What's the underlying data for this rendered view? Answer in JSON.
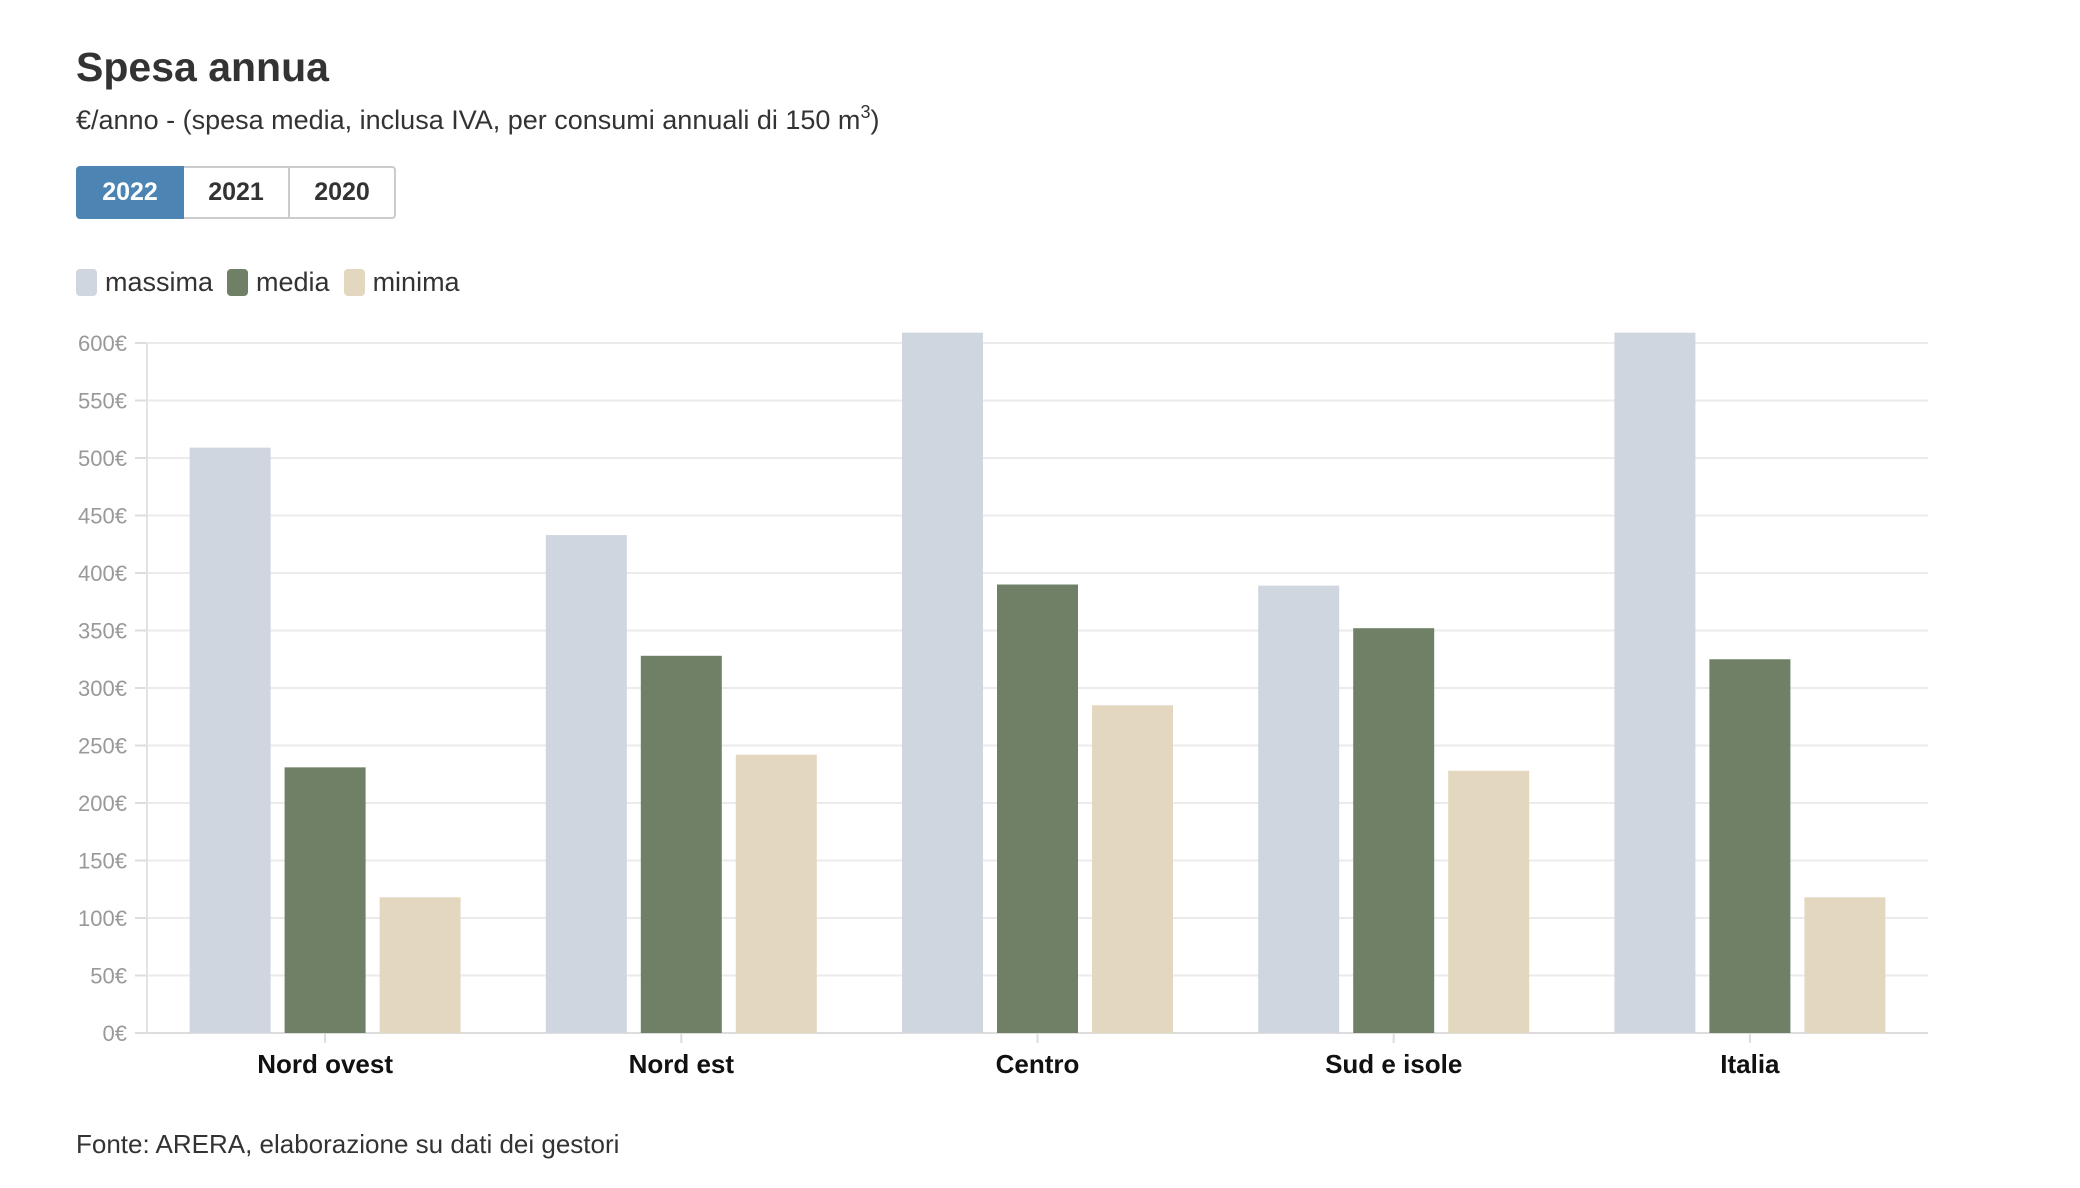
{
  "header": {
    "title": "Spesa annua",
    "subtitle_text": "€/anno - (spesa media, inclusa IVA, per consumi annuali di 150 m",
    "subtitle_sup": "3",
    "subtitle_close": ")"
  },
  "tabs": [
    {
      "label": "2022",
      "active": true
    },
    {
      "label": "2021",
      "active": false
    },
    {
      "label": "2020",
      "active": false
    }
  ],
  "legend": [
    {
      "label": "massima",
      "color": "#cfd6df"
    },
    {
      "label": "media",
      "color": "#6f8066"
    },
    {
      "label": "minima",
      "color": "#e4d7c0"
    }
  ],
  "source": "Fonte: ARERA, elaborazione su dati dei gestori",
  "chart_data": {
    "type": "bar",
    "categories": [
      "Nord ovest",
      "Nord est",
      "Centro",
      "Sud e isole",
      "Italia"
    ],
    "series": [
      {
        "name": "massima",
        "color": "#cfd6df",
        "values": [
          509,
          433,
          609,
          389,
          609
        ]
      },
      {
        "name": "media",
        "color": "#6f8066",
        "values": [
          231,
          328,
          390,
          352,
          325
        ]
      },
      {
        "name": "minima",
        "color": "#e4d7c0",
        "values": [
          118,
          242,
          285,
          228,
          118
        ]
      }
    ],
    "ylim": [
      0,
      600
    ],
    "yticks": [
      0,
      50,
      100,
      150,
      200,
      250,
      300,
      350,
      400,
      450,
      500,
      550,
      600
    ],
    "ytick_labels": [
      "0€",
      "50€",
      "100€",
      "150€",
      "200€",
      "250€",
      "300€",
      "350€",
      "400€",
      "450€",
      "500€",
      "550€",
      "600€"
    ],
    "grid": true,
    "legend_position": "top-left"
  }
}
